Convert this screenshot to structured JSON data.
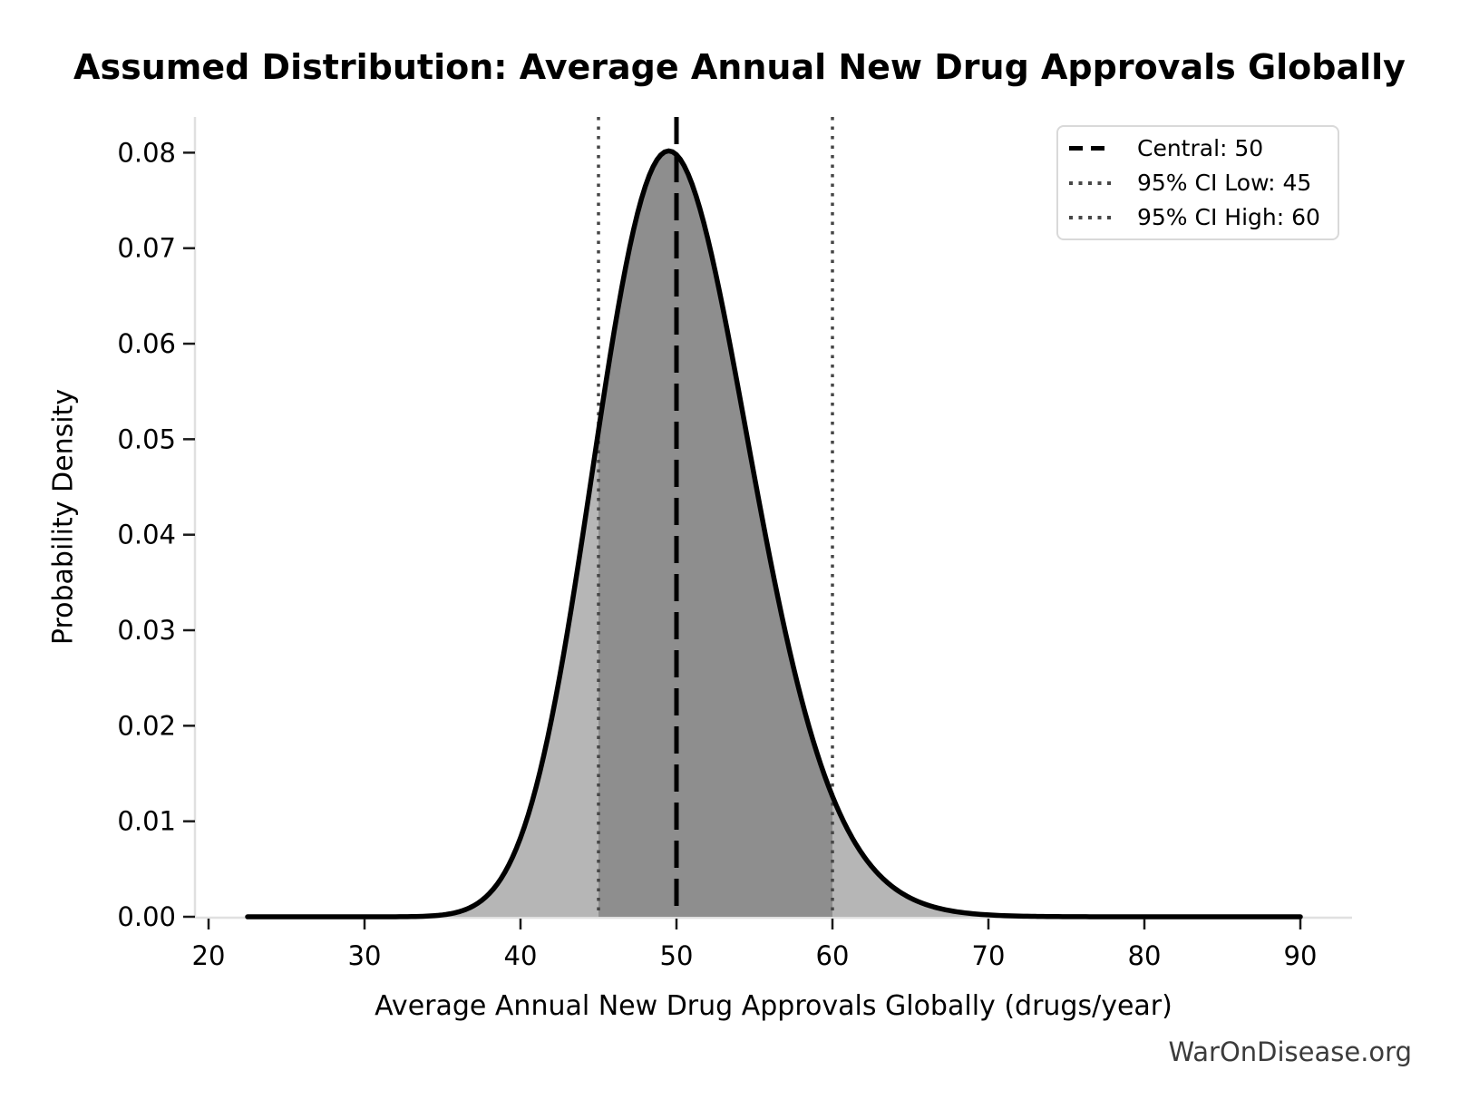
{
  "figure": {
    "watermark": "WarOnDisease.org"
  },
  "chart_data": {
    "type": "area",
    "title": "Assumed Distribution: Average Annual New Drug Approvals Globally",
    "xlabel": "Average Annual New Drug Approvals Globally (drugs/year)",
    "ylabel": "Probability Density",
    "grid": false,
    "legend_position": "upper right",
    "xlim": [
      19.1,
      93.3
    ],
    "ylim": [
      0,
      0.0845
    ],
    "x_ticks": [
      20,
      30,
      40,
      50,
      60,
      70,
      80,
      90
    ],
    "y_ticks": [
      {
        "value": 0.0,
        "label": "0.00"
      },
      {
        "value": 0.01,
        "label": "0.01"
      },
      {
        "value": 0.02,
        "label": "0.02"
      },
      {
        "value": 0.03,
        "label": "0.03"
      },
      {
        "value": 0.04,
        "label": "0.04"
      },
      {
        "value": 0.05,
        "label": "0.05"
      },
      {
        "value": 0.06,
        "label": "0.06"
      },
      {
        "value": 0.07,
        "label": "0.07"
      },
      {
        "value": 0.08,
        "label": "0.08"
      }
    ],
    "markers": {
      "central": {
        "value": 50,
        "label": "Central: 50",
        "style": "dashed",
        "color": "#000000"
      },
      "ci_low": {
        "value": 45,
        "label": "95% CI Low: 45",
        "style": "dotted",
        "color": "#464646"
      },
      "ci_high": {
        "value": 60,
        "label": "95% CI High: 60",
        "style": "dotted",
        "color": "#464646"
      }
    },
    "legend_entries": [
      {
        "label": "Central: 50"
      },
      {
        "label": "95% CI Low: 45"
      },
      {
        "label": "95% CI High: 60"
      }
    ],
    "shaded_interval": [
      45,
      60
    ],
    "distribution": {
      "family": "lognormal",
      "median": 50,
      "sigma_log": 0.1,
      "mode": 49.5,
      "peak_density": 0.0802,
      "x_start": 22.5,
      "x_end": 90
    },
    "curve_points": [
      [
        22.5,
        0
      ],
      [
        25,
        0
      ],
      [
        27.5,
        0
      ],
      [
        30,
        3e-07
      ],
      [
        32.5,
        1e-05
      ],
      [
        35,
        0.0002
      ],
      [
        37.5,
        0.0017
      ],
      [
        40,
        0.0083
      ],
      [
        42.5,
        0.0251
      ],
      [
        45,
        0.0509
      ],
      [
        47.5,
        0.0736
      ],
      [
        49.5,
        0.0802
      ],
      [
        50,
        0.0798
      ],
      [
        52.5,
        0.0675
      ],
      [
        55,
        0.0461
      ],
      [
        57.5,
        0.0261
      ],
      [
        60,
        0.0126
      ],
      [
        62.5,
        0.0053
      ],
      [
        65,
        0.002
      ],
      [
        67.5,
        0.00066
      ],
      [
        70,
        0.0002
      ],
      [
        72.5,
        6e-05
      ],
      [
        75,
        1.4e-05
      ],
      [
        80,
        1e-06
      ],
      [
        85,
        0
      ],
      [
        90,
        0
      ]
    ],
    "colors": {
      "curve": "#000000",
      "fill_outside_ci": "#b6b6b6",
      "fill_inside_ci": "#8e8e8e",
      "central_line": "#000000",
      "ci_line": "#464646",
      "spine": "#e0e0e0",
      "tick": "#1a1a1a",
      "text": "#000000",
      "watermark": "#3c3c3c"
    }
  }
}
